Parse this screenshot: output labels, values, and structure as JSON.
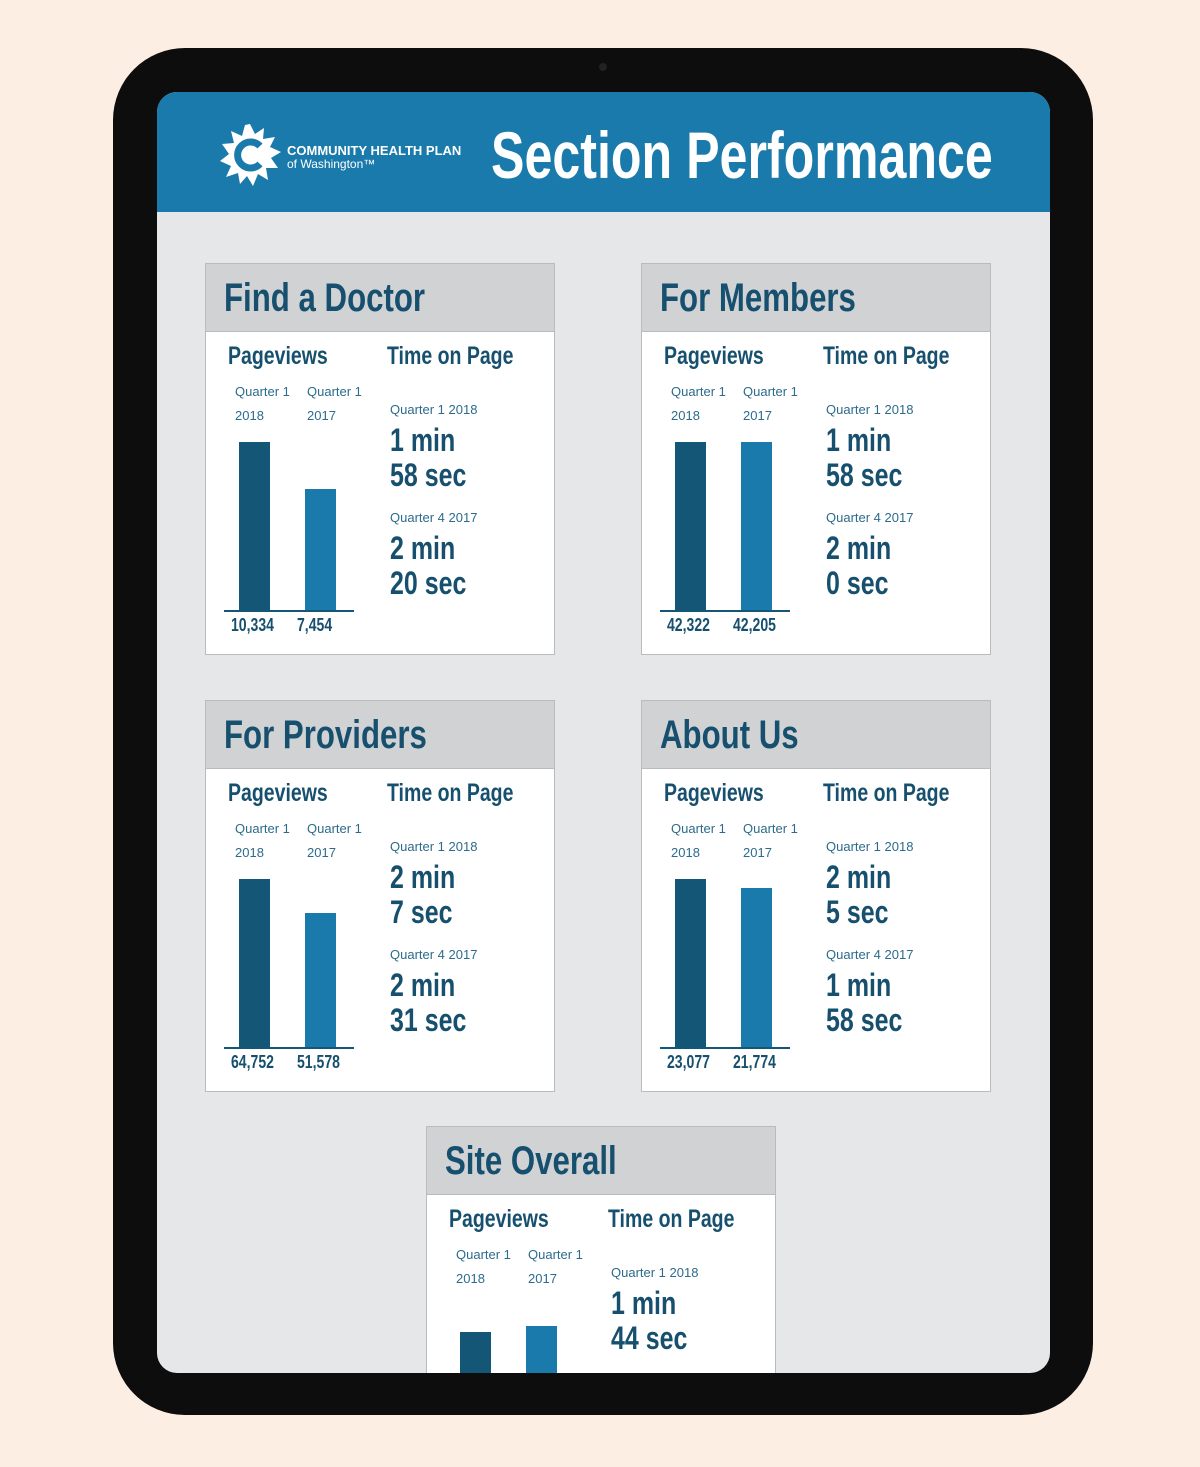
{
  "header": {
    "logo_line1": "COMMUNITY HEALTH PLAN",
    "logo_line2": "of Washington™",
    "title": "Section Performance"
  },
  "sections": [
    {
      "title": "Find a Doctor",
      "pageviews": {
        "heading": "Pageviews",
        "periods": [
          {
            "quarter": "Quarter 1",
            "year": "2018"
          },
          {
            "quarter": "Quarter 1",
            "year": "2017"
          }
        ],
        "values": [
          10334,
          7454
        ],
        "value_labels": [
          "10,334",
          "7,454"
        ]
      },
      "time": {
        "heading": "Time on Page",
        "entries": [
          {
            "period": "Quarter 1 2018",
            "min": "1 min",
            "sec": "58 sec"
          },
          {
            "period": "Quarter 4 2017",
            "min": "2 min",
            "sec": "20 sec"
          }
        ]
      }
    },
    {
      "title": "For Members",
      "pageviews": {
        "heading": "Pageviews",
        "periods": [
          {
            "quarter": "Quarter 1",
            "year": "2018"
          },
          {
            "quarter": "Quarter 1",
            "year": "2017"
          }
        ],
        "values": [
          42322,
          42205
        ],
        "value_labels": [
          "42,322",
          "42,205"
        ]
      },
      "time": {
        "heading": "Time on Page",
        "entries": [
          {
            "period": "Quarter 1 2018",
            "min": "1 min",
            "sec": "58 sec"
          },
          {
            "period": "Quarter 4 2017",
            "min": "2 min",
            "sec": "0 sec"
          }
        ]
      }
    },
    {
      "title": "For Providers",
      "pageviews": {
        "heading": "Pageviews",
        "periods": [
          {
            "quarter": "Quarter 1",
            "year": "2018"
          },
          {
            "quarter": "Quarter 1",
            "year": "2017"
          }
        ],
        "values": [
          64752,
          51578
        ],
        "value_labels": [
          "64,752",
          "51,578"
        ]
      },
      "time": {
        "heading": "Time on Page",
        "entries": [
          {
            "period": "Quarter 1 2018",
            "min": "2 min",
            "sec": "7 sec"
          },
          {
            "period": "Quarter 4 2017",
            "min": "2 min",
            "sec": "31 sec"
          }
        ]
      }
    },
    {
      "title": "About Us",
      "pageviews": {
        "heading": "Pageviews",
        "periods": [
          {
            "quarter": "Quarter 1",
            "year": "2018"
          },
          {
            "quarter": "Quarter 1",
            "year": "2017"
          }
        ],
        "values": [
          23077,
          21774
        ],
        "value_labels": [
          "23,077",
          "21,774"
        ]
      },
      "time": {
        "heading": "Time on Page",
        "entries": [
          {
            "period": "Quarter 1 2018",
            "min": "2 min",
            "sec": "5 sec"
          },
          {
            "period": "Quarter 4 2017",
            "min": "1 min",
            "sec": "58 sec"
          }
        ]
      }
    },
    {
      "title": "Site Overall",
      "pageviews": {
        "heading": "Pageviews",
        "periods": [
          {
            "quarter": "Quarter 1",
            "year": "2018"
          },
          {
            "quarter": "Quarter 1",
            "year": "2017"
          }
        ]
      },
      "time": {
        "heading": "Time on Page",
        "entries": [
          {
            "period": "Quarter 1 2018",
            "min": "1 min",
            "sec": "44 sec"
          }
        ]
      }
    }
  ]
}
